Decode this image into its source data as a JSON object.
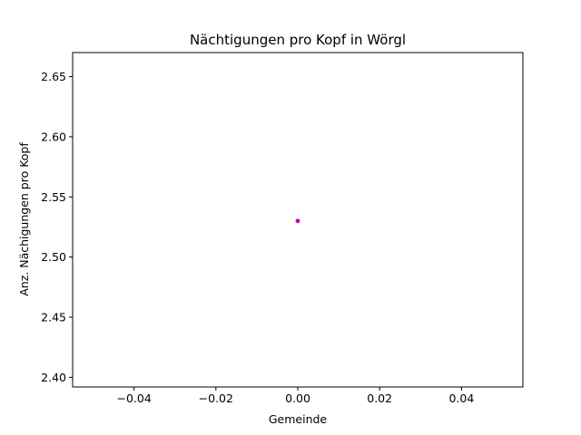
{
  "chart_data": {
    "type": "scatter",
    "title": "Nächtigungen pro Kopf in Wörgl",
    "xlabel": "Gemeinde",
    "ylabel": "Anz. Nächigungen pro Kopf",
    "xlim": [
      -0.055,
      0.055
    ],
    "ylim": [
      2.392,
      2.67
    ],
    "x_ticks": [
      -0.04,
      -0.02,
      0.0,
      0.02,
      0.04
    ],
    "x_tick_labels": [
      "−0.04",
      "−0.02",
      "0.00",
      "0.02",
      "0.04"
    ],
    "y_ticks": [
      2.4,
      2.45,
      2.5,
      2.55,
      2.6,
      2.65
    ],
    "y_tick_labels": [
      "2.40",
      "2.45",
      "2.50",
      "2.55",
      "2.60",
      "2.65"
    ],
    "grid": false,
    "legend": "none",
    "series": [
      {
        "color": "#bf00bf",
        "points": [
          {
            "x": 0.0,
            "y": 2.53
          }
        ]
      }
    ]
  }
}
